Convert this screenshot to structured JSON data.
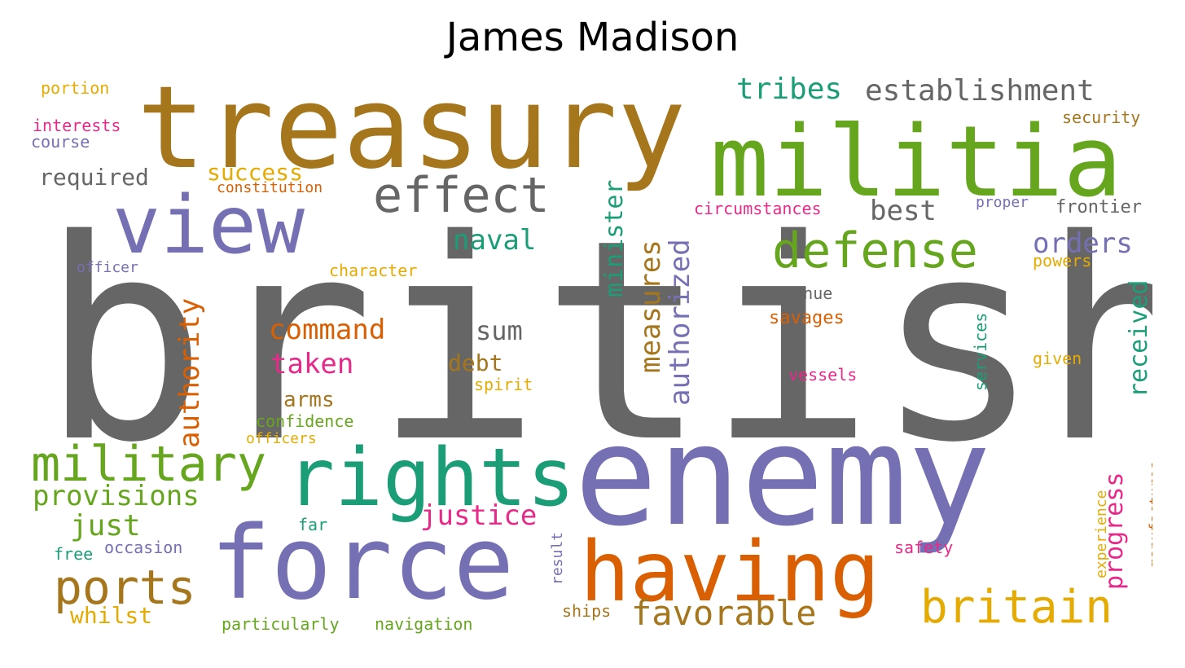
{
  "title": "James Madison",
  "palette": {
    "gray": "#666666",
    "purple": "#7570b3",
    "brown": "#a6761d",
    "green": "#66a61e",
    "teal": "#1b9e77",
    "orange": "#d95f02",
    "pink": "#e7298a",
    "gold": "#e6ab02"
  },
  "words": [
    {
      "text": "british",
      "color": "gray"
    },
    {
      "text": "enemy",
      "color": "purple"
    },
    {
      "text": "treasury",
      "color": "brown"
    },
    {
      "text": "militia",
      "color": "green"
    },
    {
      "text": "force",
      "color": "purple"
    },
    {
      "text": "view",
      "color": "purple"
    },
    {
      "text": "rights",
      "color": "teal"
    },
    {
      "text": "having",
      "color": "orange"
    },
    {
      "text": "defense",
      "color": "green"
    },
    {
      "text": "effect",
      "color": "gray"
    },
    {
      "text": "military",
      "color": "green"
    },
    {
      "text": "britain",
      "color": "gold"
    },
    {
      "text": "ports",
      "color": "brown"
    },
    {
      "text": "favorable",
      "color": "brown"
    },
    {
      "text": "establishment",
      "color": "gray"
    },
    {
      "text": "tribes",
      "color": "teal"
    },
    {
      "text": "authority",
      "color": "orange"
    },
    {
      "text": "measures",
      "color": "brown"
    },
    {
      "text": "authorized",
      "color": "purple"
    },
    {
      "text": "minister",
      "color": "teal"
    },
    {
      "text": "orders",
      "color": "purple"
    },
    {
      "text": "received",
      "color": "teal"
    },
    {
      "text": "progress",
      "color": "pink"
    },
    {
      "text": "command",
      "color": "orange"
    },
    {
      "text": "justice",
      "color": "pink"
    },
    {
      "text": "provisions",
      "color": "green"
    },
    {
      "text": "naval",
      "color": "teal"
    },
    {
      "text": "taken",
      "color": "pink"
    },
    {
      "text": "best",
      "color": "gray"
    },
    {
      "text": "just",
      "color": "green"
    },
    {
      "text": "required",
      "color": "gray"
    },
    {
      "text": "success",
      "color": "gold"
    },
    {
      "text": "sum",
      "color": "gray"
    },
    {
      "text": "debt",
      "color": "brown"
    },
    {
      "text": "arms",
      "color": "brown"
    },
    {
      "text": "whilst",
      "color": "gold"
    },
    {
      "text": "portion",
      "color": "gold"
    },
    {
      "text": "interests",
      "color": "pink"
    },
    {
      "text": "course",
      "color": "purple"
    },
    {
      "text": "security",
      "color": "brown"
    },
    {
      "text": "constitution",
      "color": "orange"
    },
    {
      "text": "circumstances",
      "color": "pink"
    },
    {
      "text": "proper",
      "color": "purple"
    },
    {
      "text": "frontier",
      "color": "gray"
    },
    {
      "text": "officer",
      "color": "purple"
    },
    {
      "text": "character",
      "color": "gold"
    },
    {
      "text": "powers",
      "color": "gold"
    },
    {
      "text": "revenue",
      "color": "gray"
    },
    {
      "text": "savages",
      "color": "orange"
    },
    {
      "text": "services",
      "color": "teal"
    },
    {
      "text": "given",
      "color": "gold"
    },
    {
      "text": "vessels",
      "color": "pink"
    },
    {
      "text": "spirit",
      "color": "gold"
    },
    {
      "text": "confidence",
      "color": "green"
    },
    {
      "text": "officers",
      "color": "gold"
    },
    {
      "text": "far",
      "color": "teal"
    },
    {
      "text": "occasion",
      "color": "purple"
    },
    {
      "text": "free",
      "color": "teal"
    },
    {
      "text": "result",
      "color": "purple"
    },
    {
      "text": "ships",
      "color": "brown"
    },
    {
      "text": "particularly",
      "color": "green"
    },
    {
      "text": "navigation",
      "color": "green"
    },
    {
      "text": "safety",
      "color": "pink"
    },
    {
      "text": "experience",
      "color": "gold"
    },
    {
      "text": "manufactures",
      "color": "orange"
    }
  ]
}
